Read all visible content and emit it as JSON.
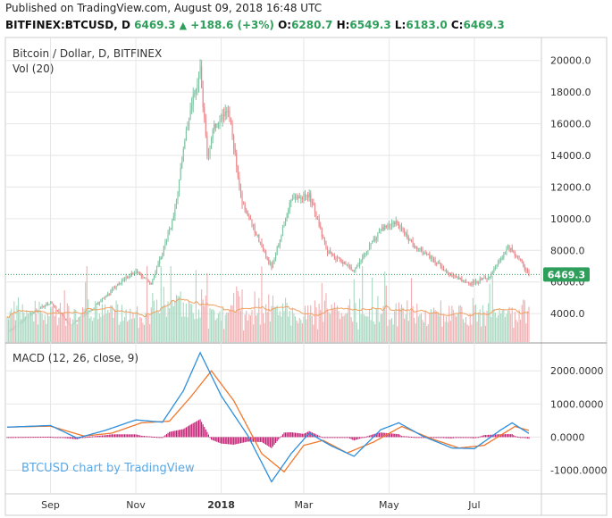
{
  "header": {
    "published": "Published on TradingView.com, August 09, 2018 16:48 UTC",
    "symbol": "BITFINEX:BTCUSD, D",
    "last": "6469.3",
    "change_arrow": "▲",
    "change": "+188.6 (+3%)",
    "o_label": "O:",
    "o": "6280.7",
    "h_label": "H:",
    "h": "6549.3",
    "l_label": "L:",
    "l": "6183.0",
    "c_label": "C:",
    "c": "6469.3"
  },
  "colors": {
    "up": "#7fc4a3",
    "down": "#e8868a",
    "up_vol": "#a9d8c1",
    "down_vol": "#f0aeb1",
    "macd_line": "#2d8fdd",
    "signal_line": "#f0782d",
    "hist": "#c0156e",
    "vol_ma": "#f0a060",
    "price_line": "#2e9e5b",
    "grid": "#e6e6e6",
    "axis": "#cccccc"
  },
  "chart_data": [
    {
      "type": "candlestick",
      "title": "Bitcoin / Dollar, D, BITFINEX",
      "volume_label": "Vol (20)",
      "ylim": [
        2200,
        21000
      ],
      "yticks": [
        4000,
        6000,
        8000,
        10000,
        12000,
        14000,
        16000,
        18000,
        20000
      ],
      "ytick_labels": [
        "4000.0",
        "6000.0",
        "8000.0",
        "10000.0",
        "12000.0",
        "14000.0",
        "16000.0",
        "18000.0",
        "20000.0"
      ],
      "x_labels": [
        "Sep",
        "Nov",
        "2018",
        "Mar",
        "May",
        "Jul"
      ],
      "x_label_dates": [
        "2017-09-01",
        "2017-11-01",
        "2018-01-01",
        "2018-03-01",
        "2018-05-01",
        "2018-07-01"
      ],
      "date_range": [
        "2017-08-01",
        "2018-08-09"
      ],
      "last_price": 6469.3,
      "last_price_label": "6469.3",
      "watermark": "BTCUSD chart by TradingView",
      "close_anchors": [
        [
          "2017-08-01",
          2800
        ],
        [
          "2017-08-20",
          4100
        ],
        [
          "2017-09-01",
          4700
        ],
        [
          "2017-09-15",
          3300
        ],
        [
          "2017-10-01",
          4300
        ],
        [
          "2017-10-20",
          5900
        ],
        [
          "2017-11-01",
          6700
        ],
        [
          "2017-11-12",
          5900
        ],
        [
          "2017-11-28",
          10000
        ],
        [
          "2017-12-08",
          16000
        ],
        [
          "2017-12-17",
          19500
        ],
        [
          "2017-12-22",
          13900
        ],
        [
          "2017-12-27",
          15800
        ],
        [
          "2018-01-06",
          17000
        ],
        [
          "2018-01-16",
          11000
        ],
        [
          "2018-02-06",
          6900
        ],
        [
          "2018-02-20",
          11200
        ],
        [
          "2018-03-05",
          11500
        ],
        [
          "2018-03-18",
          7900
        ],
        [
          "2018-04-06",
          6700
        ],
        [
          "2018-04-25",
          9300
        ],
        [
          "2018-05-05",
          9800
        ],
        [
          "2018-05-20",
          8200
        ],
        [
          "2018-06-01",
          7500
        ],
        [
          "2018-06-12",
          6500
        ],
        [
          "2018-06-28",
          5900
        ],
        [
          "2018-07-12",
          6300
        ],
        [
          "2018-07-25",
          8200
        ],
        [
          "2018-08-01",
          7600
        ],
        [
          "2018-08-09",
          6469
        ]
      ]
    },
    {
      "type": "line",
      "title": "MACD (12, 26, close, 9)",
      "ylim": [
        -1500,
        2600
      ],
      "yticks": [
        -1000,
        0,
        1000,
        2000
      ],
      "ytick_labels": [
        "-1000.0000",
        "0.0000",
        "1000.0000",
        "2000.0000"
      ],
      "series": [
        {
          "key": "macd",
          "points": [
            [
              "2017-08-01",
              300
            ],
            [
              "2017-09-01",
              350
            ],
            [
              "2017-09-20",
              -30
            ],
            [
              "2017-10-10",
              200
            ],
            [
              "2017-11-01",
              520
            ],
            [
              "2017-11-20",
              450
            ],
            [
              "2017-12-05",
              1400
            ],
            [
              "2017-12-17",
              2550
            ],
            [
              "2018-01-01",
              1250
            ],
            [
              "2018-01-20",
              50
            ],
            [
              "2018-02-06",
              -1350
            ],
            [
              "2018-02-20",
              -500
            ],
            [
              "2018-03-05",
              120
            ],
            [
              "2018-03-20",
              -250
            ],
            [
              "2018-04-06",
              -580
            ],
            [
              "2018-04-25",
              220
            ],
            [
              "2018-05-08",
              430
            ],
            [
              "2018-05-25",
              30
            ],
            [
              "2018-06-15",
              -330
            ],
            [
              "2018-07-01",
              -350
            ],
            [
              "2018-07-20",
              220
            ],
            [
              "2018-07-28",
              430
            ],
            [
              "2018-08-09",
              110
            ]
          ]
        },
        {
          "key": "signal",
          "points": [
            [
              "2017-08-01",
              300
            ],
            [
              "2017-09-01",
              330
            ],
            [
              "2017-09-25",
              30
            ],
            [
              "2017-10-15",
              120
            ],
            [
              "2017-11-05",
              430
            ],
            [
              "2017-11-25",
              480
            ],
            [
              "2017-12-10",
              1200
            ],
            [
              "2017-12-25",
              2000
            ],
            [
              "2018-01-10",
              1100
            ],
            [
              "2018-01-30",
              -500
            ],
            [
              "2018-02-15",
              -1050
            ],
            [
              "2018-03-01",
              -250
            ],
            [
              "2018-03-15",
              -100
            ],
            [
              "2018-04-01",
              -480
            ],
            [
              "2018-04-20",
              -150
            ],
            [
              "2018-05-10",
              320
            ],
            [
              "2018-06-01",
              -60
            ],
            [
              "2018-06-20",
              -330
            ],
            [
              "2018-07-08",
              -250
            ],
            [
              "2018-07-30",
              320
            ],
            [
              "2018-08-09",
              200
            ]
          ]
        }
      ]
    }
  ]
}
